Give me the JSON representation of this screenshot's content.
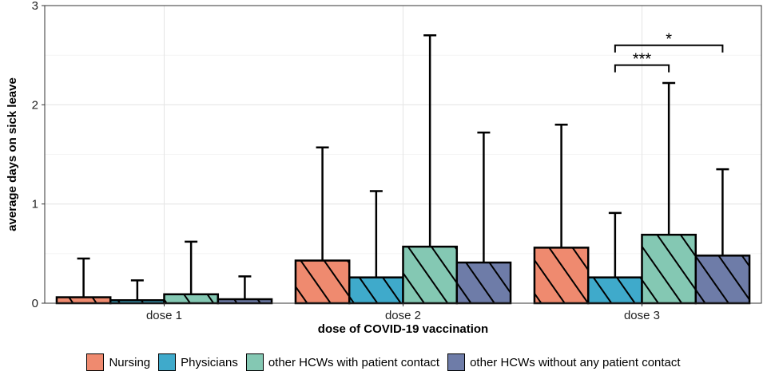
{
  "chart_data": {
    "type": "bar",
    "title": "",
    "xlabel": "dose of COVID-19 vaccination",
    "ylabel": "average days on sick leave",
    "ylim": [
      0,
      3
    ],
    "yticks": [
      0,
      1,
      2,
      3
    ],
    "grid": true,
    "legend_position": "bottom",
    "categories": [
      "dose 1",
      "dose 2",
      "dose 3"
    ],
    "series": [
      {
        "name": "Nursing",
        "color": "#EF8A6F",
        "values": [
          0.06,
          0.43,
          0.56
        ],
        "error_upper": [
          0.45,
          1.57,
          1.8
        ]
      },
      {
        "name": "Physicians",
        "color": "#3FAACB",
        "values": [
          0.03,
          0.26,
          0.26
        ],
        "error_upper": [
          0.23,
          1.13,
          0.91
        ]
      },
      {
        "name": "other HCWs with patient contact",
        "color": "#84C8B3",
        "values": [
          0.09,
          0.57,
          0.69
        ],
        "error_upper": [
          0.62,
          2.7,
          2.22
        ]
      },
      {
        "name": "other HCWs without any patient contact",
        "color": "#6E7CA8",
        "values": [
          0.04,
          0.41,
          0.48
        ],
        "error_upper": [
          0.27,
          1.72,
          1.35
        ]
      }
    ],
    "annotations": [
      {
        "category": "dose 3",
        "from_series": 1,
        "to_series": 2,
        "y": 2.4,
        "label": "***"
      },
      {
        "category": "dose 3",
        "from_series": 1,
        "to_series": 3,
        "y": 2.6,
        "label": "*"
      }
    ]
  }
}
